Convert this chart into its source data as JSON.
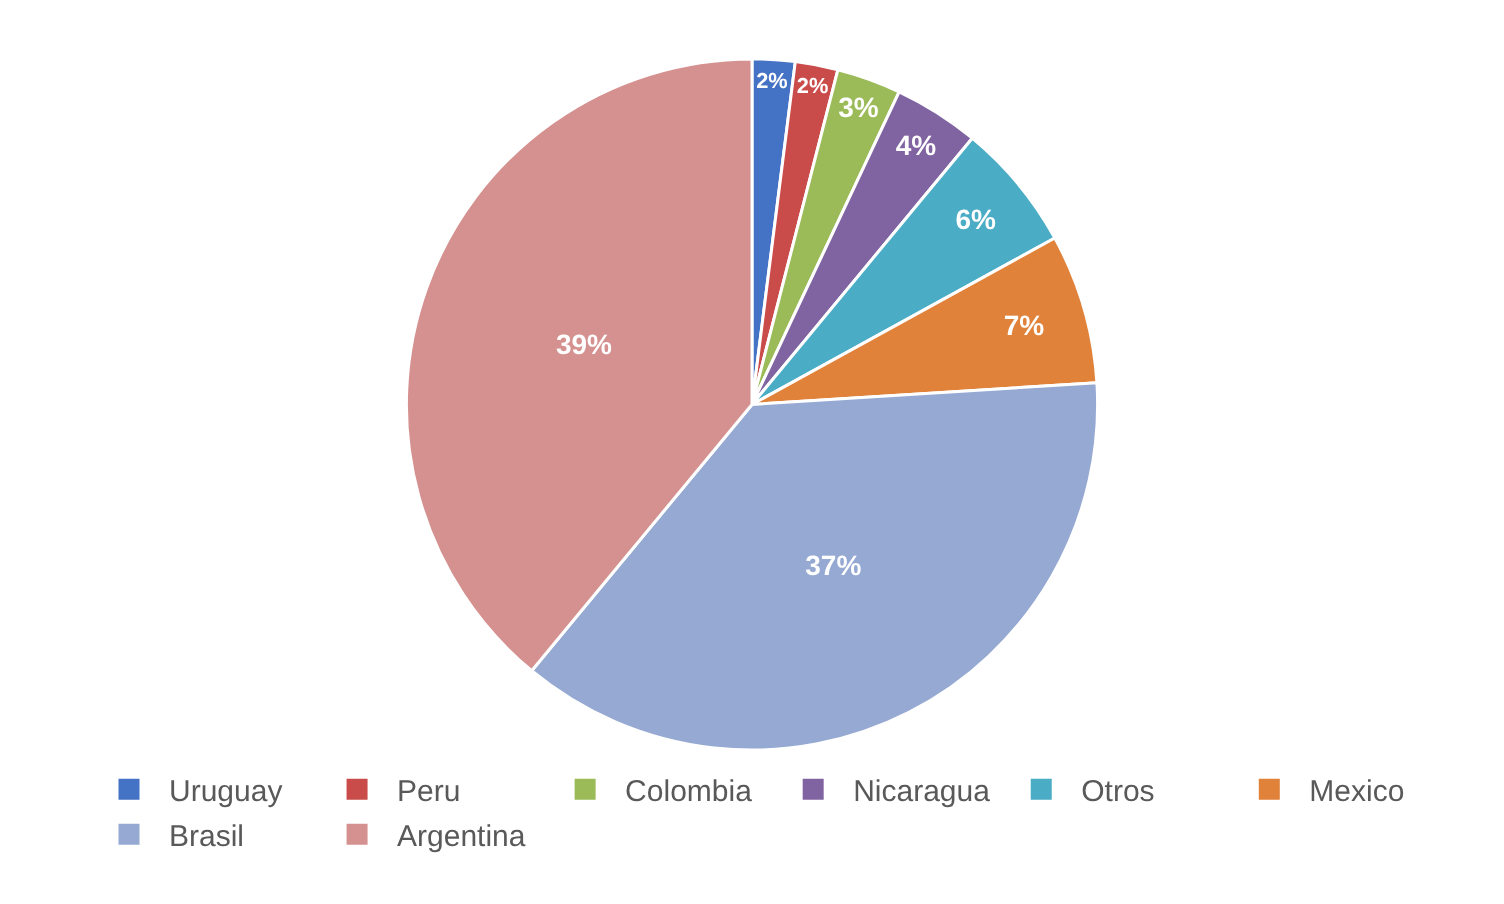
{
  "chart_data": {
    "type": "pie",
    "categories": [
      "Uruguay",
      "Peru",
      "Colombia",
      "Nicaragua",
      "Otros",
      "Mexico",
      "Brasil",
      "Argentina"
    ],
    "values": [
      2,
      2,
      3,
      4,
      6,
      7,
      37,
      39
    ],
    "value_labels": [
      "2%",
      "2%",
      "3%",
      "4%",
      "6%",
      "7%",
      "37%",
      "39%"
    ],
    "colors": [
      "#4472c4",
      "#c94c4a",
      "#9bbb59",
      "#8064a2",
      "#4bacc6",
      "#e0823a",
      "#95a9d2",
      "#d4918f"
    ],
    "legend": "bottom"
  }
}
